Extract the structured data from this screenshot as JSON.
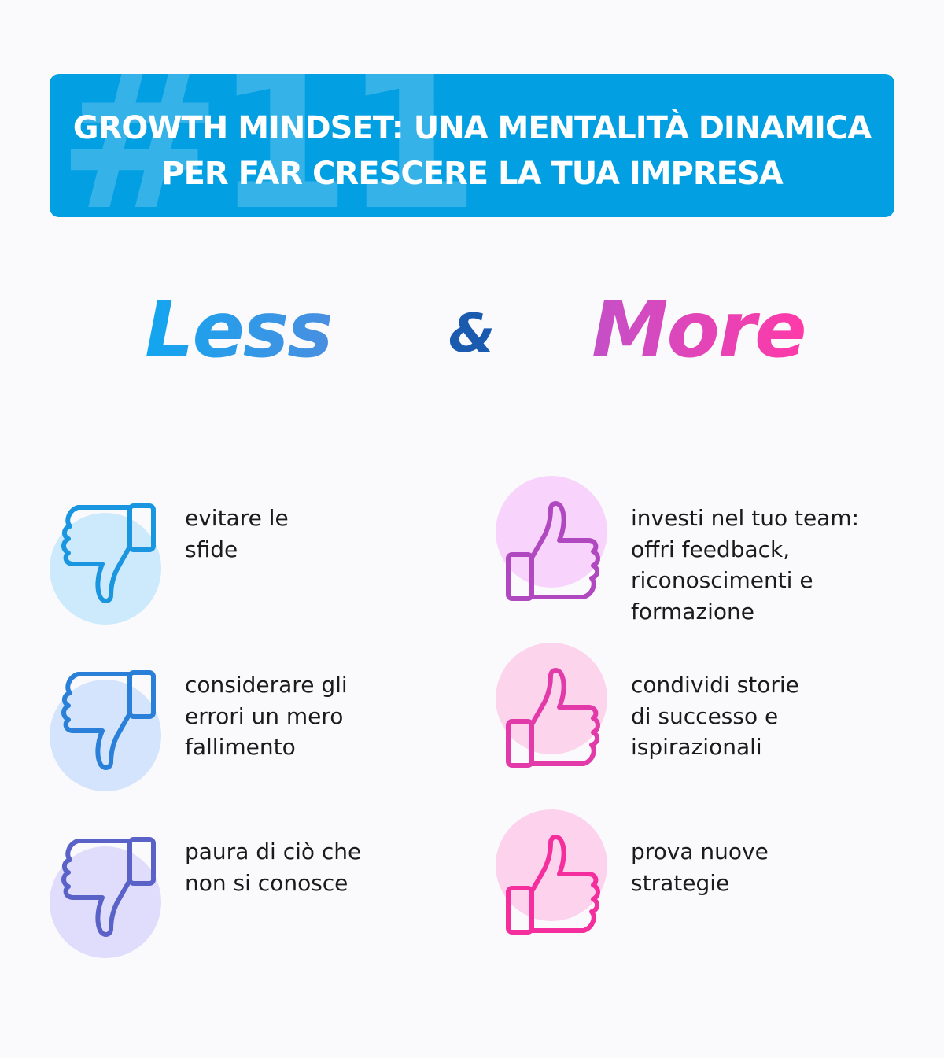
{
  "header": {
    "watermark": "#11",
    "title_line1": "GROWTH MINDSET: UNA MENTALITÀ DINAMICA",
    "title_line2": "PER FAR CRESCERE LA TUA IMPRESA",
    "color": "#039fe3"
  },
  "headings": {
    "less": "Less",
    "amp": "&",
    "more": "More"
  },
  "less_items": [
    {
      "icon": "thumbs-down-icon",
      "text": "evitare le\nsfide",
      "color": "#1a96e0",
      "bg": "#cdeafc"
    },
    {
      "icon": "thumbs-down-icon",
      "text": "considerare gli\nerrori un mero\nfallimento",
      "color": "#2a80d8",
      "bg": "#d4e4fc"
    },
    {
      "icon": "thumbs-down-icon",
      "text": "paura di ciò che\nnon si conosce",
      "color": "#5a62c8",
      "bg": "#e0dcfc"
    }
  ],
  "more_items": [
    {
      "icon": "thumbs-up-icon",
      "text": "investi nel tuo team:\noffri feedback,\nriconoscimenti e\nformazione",
      "color": "#b048c0",
      "bg": "#f8d4fc"
    },
    {
      "icon": "thumbs-up-icon",
      "text": "condividi storie\ndi successo e\nispirazionali",
      "color": "#e23aa8",
      "bg": "#fcd4ec"
    },
    {
      "icon": "thumbs-up-icon",
      "text": "prova nuove\nstrategie",
      "color": "#f52e9e",
      "bg": "#fcd2ec"
    }
  ]
}
